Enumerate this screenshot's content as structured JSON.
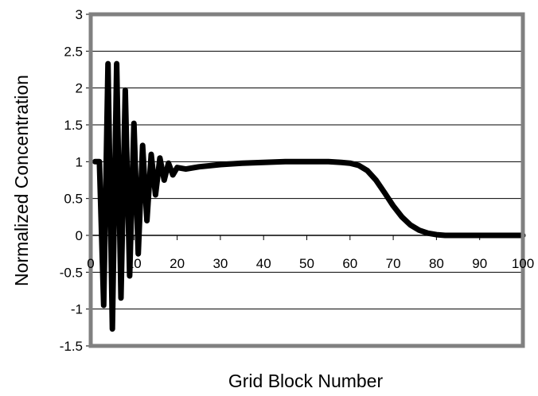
{
  "chart_data": {
    "type": "line",
    "title": "",
    "xlabel": "Grid Block Number",
    "ylabel": "Normalized Concentration",
    "xlim": [
      0,
      100
    ],
    "ylim": [
      -1.5,
      3
    ],
    "x_ticks": [
      "0",
      "10",
      "20",
      "30",
      "40",
      "50",
      "60",
      "70",
      "80",
      "90",
      "100"
    ],
    "y_ticks": [
      "3",
      "2.5",
      "2",
      "1.5",
      "1",
      "0.5",
      "0",
      "-0.5",
      "-1",
      "-1.5"
    ],
    "grid": true,
    "legend": "none",
    "colors": {
      "line": "#000000",
      "frame": "#808080",
      "grid": "#000000",
      "background": "#ffffff"
    },
    "series": [
      {
        "x": [
          1,
          2,
          3,
          4,
          5,
          6,
          7,
          8,
          9,
          10,
          11,
          12,
          13,
          14,
          15,
          16,
          17,
          18,
          19,
          20,
          22,
          25,
          30,
          35,
          40,
          45,
          50,
          55,
          58,
          60,
          62,
          64,
          66,
          68,
          70,
          72,
          74,
          76,
          78,
          80,
          82,
          84,
          86,
          90,
          95,
          100
        ],
        "values": [
          1.0,
          1.0,
          -0.95,
          2.33,
          -1.27,
          2.33,
          -0.85,
          1.97,
          -0.55,
          1.52,
          -0.25,
          1.22,
          0.2,
          1.1,
          0.55,
          1.05,
          0.75,
          0.98,
          0.82,
          0.92,
          0.9,
          0.93,
          0.96,
          0.98,
          0.99,
          1.0,
          1.0,
          1.0,
          0.99,
          0.98,
          0.95,
          0.88,
          0.75,
          0.58,
          0.4,
          0.25,
          0.14,
          0.07,
          0.03,
          0.01,
          0.0,
          0.0,
          0.0,
          0.0,
          0.0,
          0.0
        ]
      }
    ]
  }
}
